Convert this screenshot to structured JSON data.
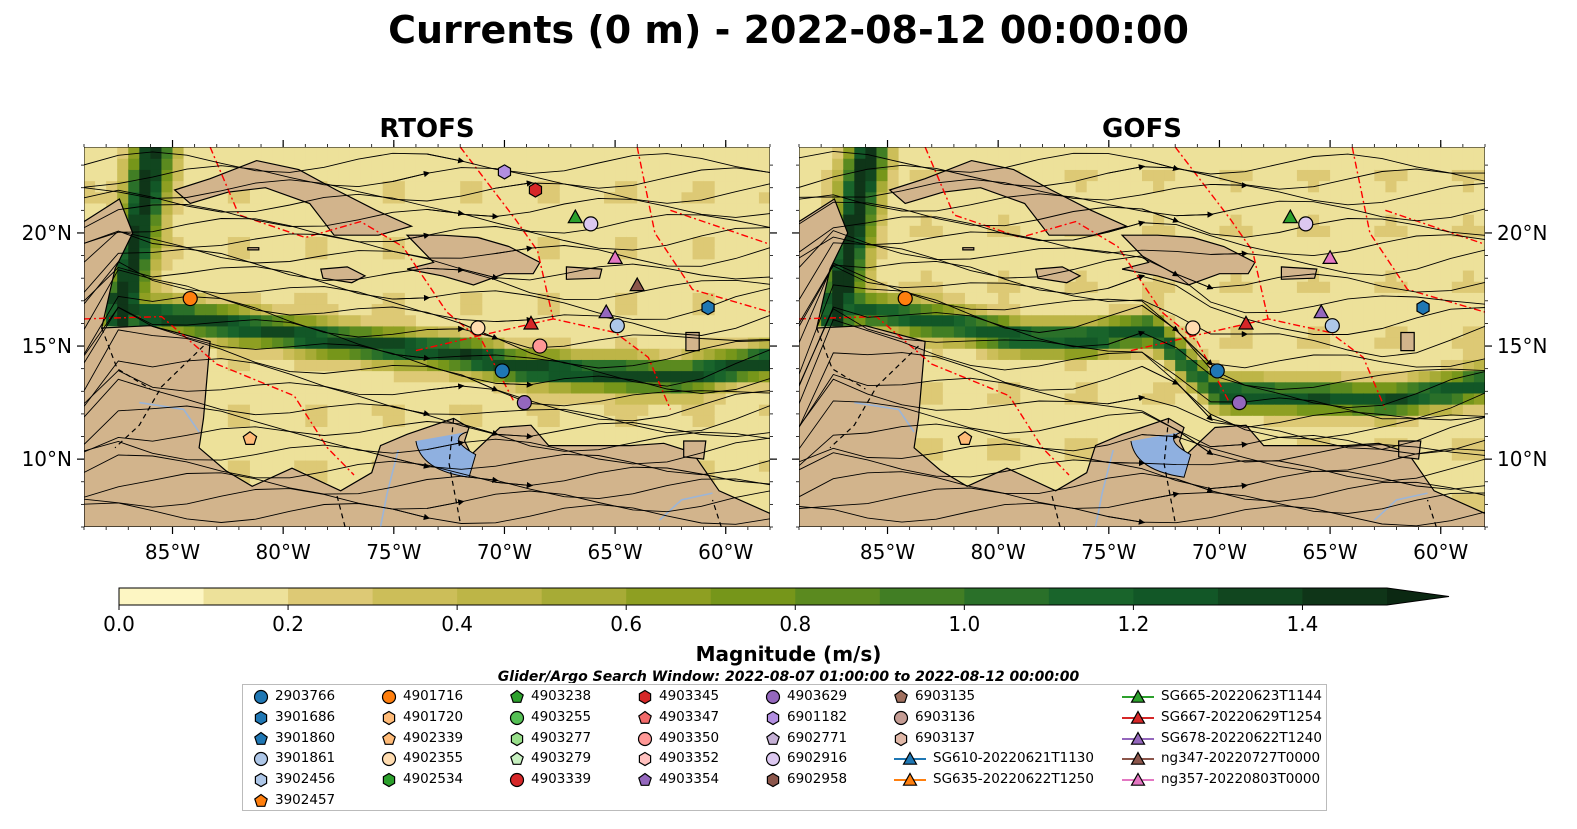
{
  "title": "Currents (0 m) - 2022-08-12 00:00:00",
  "panels": [
    {
      "name": "RTOFS"
    },
    {
      "name": "GOFS"
    }
  ],
  "axes": {
    "lat_ticks": [
      "10°N",
      "15°N",
      "20°N"
    ],
    "lon_ticks": [
      "85°W",
      "80°W",
      "75°W",
      "70°W",
      "65°W",
      "60°W"
    ],
    "lon_range": [
      -89,
      -58
    ],
    "lat_range": [
      7,
      23.8
    ]
  },
  "colorbar": {
    "label": "Magnitude (m/s)",
    "ticks": [
      "0.0",
      "0.2",
      "0.4",
      "0.6",
      "0.8",
      "1.0",
      "1.2",
      "1.4"
    ],
    "range": [
      0,
      1.5
    ],
    "step": 0.1,
    "colors": [
      "#fdf6c3",
      "#ede19a",
      "#ddc975",
      "#ccbe59",
      "#bdb547",
      "#a7ab36",
      "#8e9f22",
      "#76961a",
      "#5b8a1f",
      "#417e24",
      "#2a7029",
      "#19642b",
      "#125727",
      "#11461f",
      "#0f3518"
    ],
    "extend_color": "#0b2812"
  },
  "search_window": "Glider/Argo Search Window: 2022-08-07 01:00:00 to 2022-08-12 00:00:00",
  "chart_data": [
    {
      "type": "heatmap",
      "title": "RTOFS",
      "xlabel": "",
      "ylabel": "",
      "xlim": [
        -89,
        -58
      ],
      "ylim": [
        7,
        23.8
      ],
      "grid": false,
      "colorbar": "Magnitude (m/s)",
      "strong_current_core": {
        "lon": [
          -88.5,
          -86.5,
          -84,
          -80,
          -77,
          -74,
          -71.5,
          -69,
          -66,
          -62,
          -58
        ],
        "lat": [
          17.5,
          16.4,
          16.2,
          15.6,
          15.2,
          14.9,
          14.6,
          14.0,
          13.8,
          13.6,
          14.4
        ],
        "speed_m_s": 1.2
      },
      "markers": [
        {
          "id": "2903766",
          "lon": -70.1,
          "lat": 13.9
        },
        {
          "id": "4902355",
          "lon": -71.2,
          "lat": 15.8
        },
        {
          "id": "4903136",
          "lon": -71.0,
          "lat": 15.9
        },
        {
          "id": "4901716",
          "lon": -84.2,
          "lat": 17.1
        },
        {
          "id": "4902339",
          "lon": -81.5,
          "lat": 10.9
        },
        {
          "id": "6902916",
          "lon": -66.1,
          "lat": 20.4
        },
        {
          "id": "4903629",
          "lon": -69.1,
          "lat": 12.5
        },
        {
          "id": "3901861",
          "lon": -64.9,
          "lat": 15.9
        },
        {
          "id": "4903345",
          "lon": -68.6,
          "lat": 21.9
        },
        {
          "id": "6901182",
          "lon": -70.0,
          "lat": 22.7
        },
        {
          "id": "3901686",
          "lon": -60.8,
          "lat": 16.7
        },
        {
          "id": "4903350",
          "lon": -68.4,
          "lat": 15.0
        },
        {
          "id": "SG665-20220623T1144",
          "lon": -66.8,
          "lat": 20.7
        },
        {
          "id": "SG667-20220629T1254",
          "lon": -68.8,
          "lat": 16.0
        },
        {
          "id": "SG678-20220622T1240",
          "lon": -65.4,
          "lat": 16.5
        },
        {
          "id": "ng347-20220727T0000",
          "lon": -64.0,
          "lat": 17.7
        },
        {
          "id": "ng357-20220803T0000",
          "lon": -65.0,
          "lat": 18.9
        }
      ]
    },
    {
      "type": "heatmap",
      "title": "GOFS",
      "xlabel": "",
      "ylabel": "",
      "xlim": [
        -89,
        -58
      ],
      "ylim": [
        7,
        23.8
      ],
      "grid": false,
      "colorbar": "Magnitude (m/s)",
      "strong_current_core": {
        "lon": [
          -88.5,
          -86,
          -82,
          -79,
          -76,
          -73,
          -71.5,
          -70,
          -67,
          -62,
          -58
        ],
        "lat": [
          17.5,
          16.6,
          16.0,
          15.4,
          15.3,
          15.8,
          14.2,
          12.9,
          12.8,
          12.6,
          13.4
        ],
        "speed_m_s": 1.1
      },
      "markers": [
        {
          "id": "2903766",
          "lon": -70.1,
          "lat": 13.9
        },
        {
          "id": "4902355",
          "lon": -71.2,
          "lat": 15.8
        },
        {
          "id": "4901716",
          "lon": -84.2,
          "lat": 17.1
        },
        {
          "id": "4902339",
          "lon": -81.5,
          "lat": 10.9
        },
        {
          "id": "6902916",
          "lon": -66.1,
          "lat": 20.4
        },
        {
          "id": "4903629",
          "lon": -69.1,
          "lat": 12.5
        },
        {
          "id": "3901861",
          "lon": -64.9,
          "lat": 15.9
        },
        {
          "id": "3901686",
          "lon": -60.8,
          "lat": 16.7
        },
        {
          "id": "SG665-20220623T1144",
          "lon": -66.8,
          "lat": 20.7
        },
        {
          "id": "SG667-20220629T1254",
          "lon": -68.8,
          "lat": 16.0
        },
        {
          "id": "SG678-20220622T1240",
          "lon": -65.4,
          "lat": 16.5
        },
        {
          "id": "ng357-20220803T0000",
          "lon": -65.0,
          "lat": 18.9
        }
      ]
    }
  ],
  "legend": {
    "entries": [
      {
        "label": "2903766",
        "shape": "circle",
        "color": "#1f77b4"
      },
      {
        "label": "3901686",
        "shape": "hexagon",
        "color": "#1f77b4"
      },
      {
        "label": "3901860",
        "shape": "pentagon",
        "color": "#1f77b4"
      },
      {
        "label": "3901861",
        "shape": "circle",
        "color": "#aec7e8"
      },
      {
        "label": "3902456",
        "shape": "hexagon",
        "color": "#aec7e8"
      },
      {
        "label": "3902457",
        "shape": "pentagon",
        "color": "#ff7f0e"
      },
      {
        "label": "4901716",
        "shape": "circle",
        "color": "#ff7f0e"
      },
      {
        "label": "4901720",
        "shape": "hexagon",
        "color": "#ffbb78"
      },
      {
        "label": "4902339",
        "shape": "pentagon",
        "color": "#ffbb78"
      },
      {
        "label": "4902355",
        "shape": "circle",
        "color": "#ffdcb0"
      },
      {
        "label": "4902534",
        "shape": "hexagon",
        "color": "#2ca02c"
      },
      {
        "label": "4903238",
        "shape": "pentagon",
        "color": "#2ca02c"
      },
      {
        "label": "4903255",
        "shape": "circle",
        "color": "#55c055"
      },
      {
        "label": "4903277",
        "shape": "hexagon",
        "color": "#98df8a"
      },
      {
        "label": "4903279",
        "shape": "pentagon",
        "color": "#c7f0c0"
      },
      {
        "label": "4903339",
        "shape": "circle",
        "color": "#d62728"
      },
      {
        "label": "4903345",
        "shape": "hexagon",
        "color": "#d62728"
      },
      {
        "label": "4903347",
        "shape": "pentagon",
        "color": "#f26a6a"
      },
      {
        "label": "4903350",
        "shape": "circle",
        "color": "#ff9896"
      },
      {
        "label": "4903352",
        "shape": "hexagon",
        "color": "#ffc0be"
      },
      {
        "label": "4903354",
        "shape": "pentagon",
        "color": "#9467bd"
      },
      {
        "label": "4903629",
        "shape": "circle",
        "color": "#9467bd"
      },
      {
        "label": "6901182",
        "shape": "hexagon",
        "color": "#b28ee0"
      },
      {
        "label": "6902771",
        "shape": "pentagon",
        "color": "#c5b0d5"
      },
      {
        "label": "6902916",
        "shape": "circle",
        "color": "#dcc8f0"
      },
      {
        "label": "6902958",
        "shape": "hexagon",
        "color": "#8c564b"
      },
      {
        "label": "6903135",
        "shape": "pentagon",
        "color": "#a0705f"
      },
      {
        "label": "6903136",
        "shape": "circle",
        "color": "#c49c94"
      },
      {
        "label": "6903137",
        "shape": "hexagon",
        "color": "#e0b8a8"
      },
      {
        "label": "SG610-20220621T1130",
        "shape": "triangle-line",
        "color": "#1f77b4"
      },
      {
        "label": "SG635-20220622T1250",
        "shape": "triangle-line",
        "color": "#ff7f0e"
      },
      {
        "label": "SG665-20220623T1144",
        "shape": "triangle-line",
        "color": "#2ca02c"
      },
      {
        "label": "SG667-20220629T1254",
        "shape": "triangle-line",
        "color": "#d62728"
      },
      {
        "label": "SG678-20220622T1240",
        "shape": "triangle-line",
        "color": "#9467bd"
      },
      {
        "label": "ng347-20220727T0000",
        "shape": "triangle-line",
        "color": "#8c564b"
      },
      {
        "label": "ng357-20220803T0000",
        "shape": "triangle-line",
        "color": "#e377c2"
      }
    ]
  },
  "map_colors": {
    "land": "#d2b48c",
    "eez": "#ff0000",
    "border": "#000000",
    "river": "#9bb5d8",
    "lake": "#8fb0e0",
    "streamline": "#000000"
  }
}
